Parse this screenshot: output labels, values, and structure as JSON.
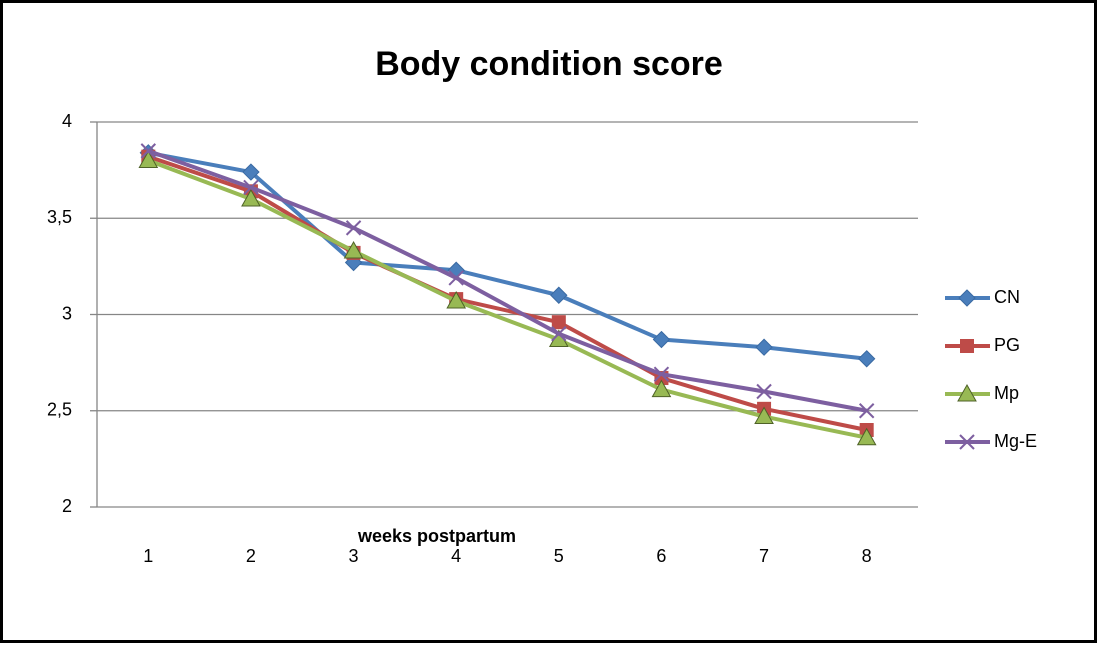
{
  "chart_data": {
    "type": "line",
    "title": "Body condition score",
    "x_label": "weeks postpartum",
    "categories": [
      "1",
      "2",
      "3",
      "4",
      "5",
      "6",
      "7",
      "8"
    ],
    "series": [
      {
        "name": "CN",
        "color": "#4a7ebb",
        "marker": "diamond",
        "values": [
          3.84,
          3.74,
          3.27,
          3.23,
          3.1,
          2.87,
          2.83,
          2.77
        ]
      },
      {
        "name": "PG",
        "color": "#be4b48",
        "marker": "square",
        "values": [
          3.82,
          3.64,
          3.32,
          3.08,
          2.96,
          2.67,
          2.51,
          2.4
        ]
      },
      {
        "name": "Mp",
        "color": "#98b954",
        "marker": "triangle",
        "values": [
          3.8,
          3.6,
          3.33,
          3.07,
          2.87,
          2.61,
          2.47,
          2.36
        ]
      },
      {
        "name": "Mg-E",
        "color": "#7d5fa0",
        "marker": "x",
        "values": [
          3.85,
          3.66,
          3.45,
          3.19,
          2.9,
          2.69,
          2.6,
          2.5
        ]
      }
    ],
    "ylim": [
      2,
      4
    ],
    "yticks": [
      2,
      {
        "value": 2.5,
        "label": "2,5"
      },
      3,
      {
        "value": 3.5,
        "label": "3,5"
      },
      4
    ],
    "grid": true,
    "legend": "right"
  }
}
